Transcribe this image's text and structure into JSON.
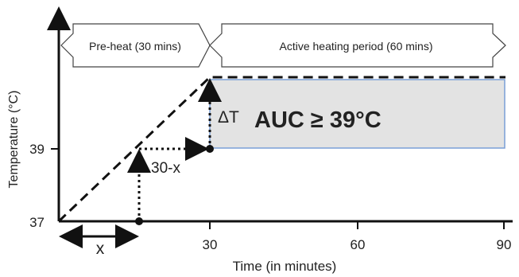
{
  "phases": {
    "preheat_label": "Pre-heat (30 mins)",
    "active_label": "Active heating period (60 mins)"
  },
  "axes": {
    "y_title": "Temperature (°C)",
    "x_title": "Time (in minutes)",
    "y_ticks": [
      "37",
      "39"
    ],
    "x_ticks": [
      "30",
      "60",
      "90"
    ]
  },
  "annotations": {
    "delta_t": "ΔT",
    "auc": "AUC ≥ 39°C",
    "thirty_minus_x": "30-x",
    "x_label": "x"
  },
  "colors": {
    "auc_fill": "#e3e3e3",
    "auc_stroke": "#7a9fd6",
    "line": "#111111"
  }
}
